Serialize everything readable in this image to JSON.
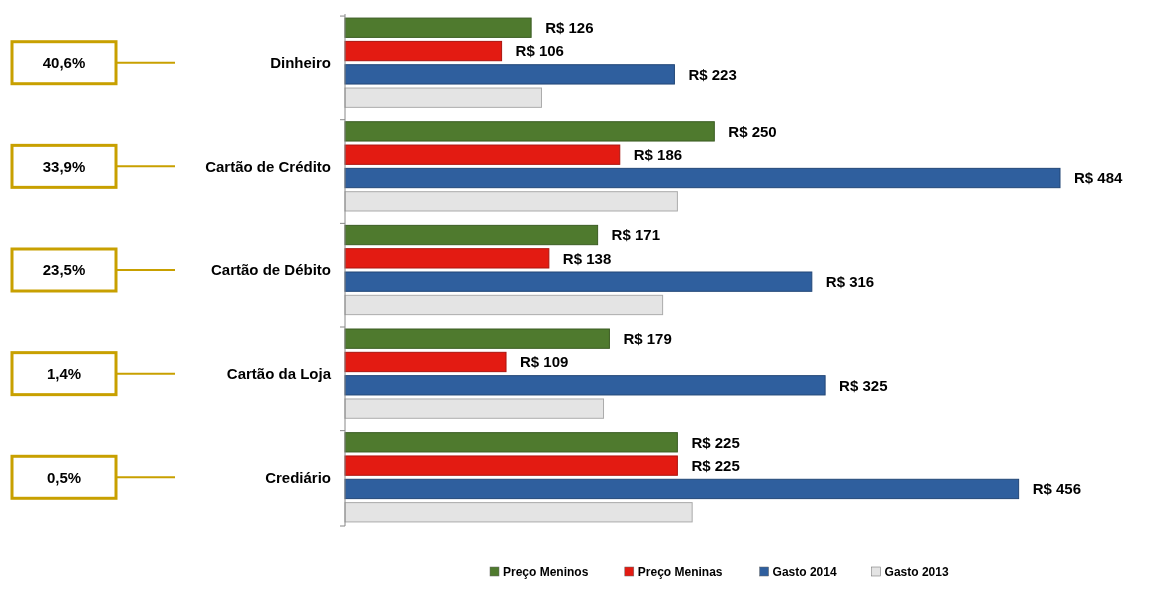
{
  "chart_data": {
    "type": "bar",
    "orientation": "horizontal",
    "categories": [
      "Dinheiro",
      "Cartão de Crédito",
      "Cartão de Débito",
      "Cartão da Loja",
      "Crediário"
    ],
    "series": [
      {
        "name": "Preço Meninos",
        "color": "#4f7a2e",
        "values": [
          126,
          250,
          171,
          179,
          225
        ],
        "value_labels": [
          "R$ 126",
          "R$ 250",
          "R$ 171",
          "R$ 179",
          "R$ 225"
        ]
      },
      {
        "name": "Preço Meninas",
        "color": "#e31b12",
        "values": [
          106,
          186,
          138,
          109,
          225
        ],
        "value_labels": [
          "R$ 106",
          "R$ 186",
          "R$ 138",
          "R$ 109",
          "R$ 225"
        ]
      },
      {
        "name": "Gasto 2014",
        "color": "#2f5f9e",
        "values": [
          223,
          484,
          316,
          325,
          456
        ],
        "value_labels": [
          "R$ 223",
          "R$ 484",
          "R$ 316",
          "R$ 325",
          "R$ 456"
        ]
      },
      {
        "name": "Gasto 2013",
        "color": "#e4e4e4",
        "values": [
          133,
          225,
          215,
          175,
          235
        ]
      }
    ],
    "annotations": [
      "40,6%",
      "33,9%",
      "23,5%",
      "1,4%",
      "0,5%"
    ],
    "legend": "bottom"
  }
}
